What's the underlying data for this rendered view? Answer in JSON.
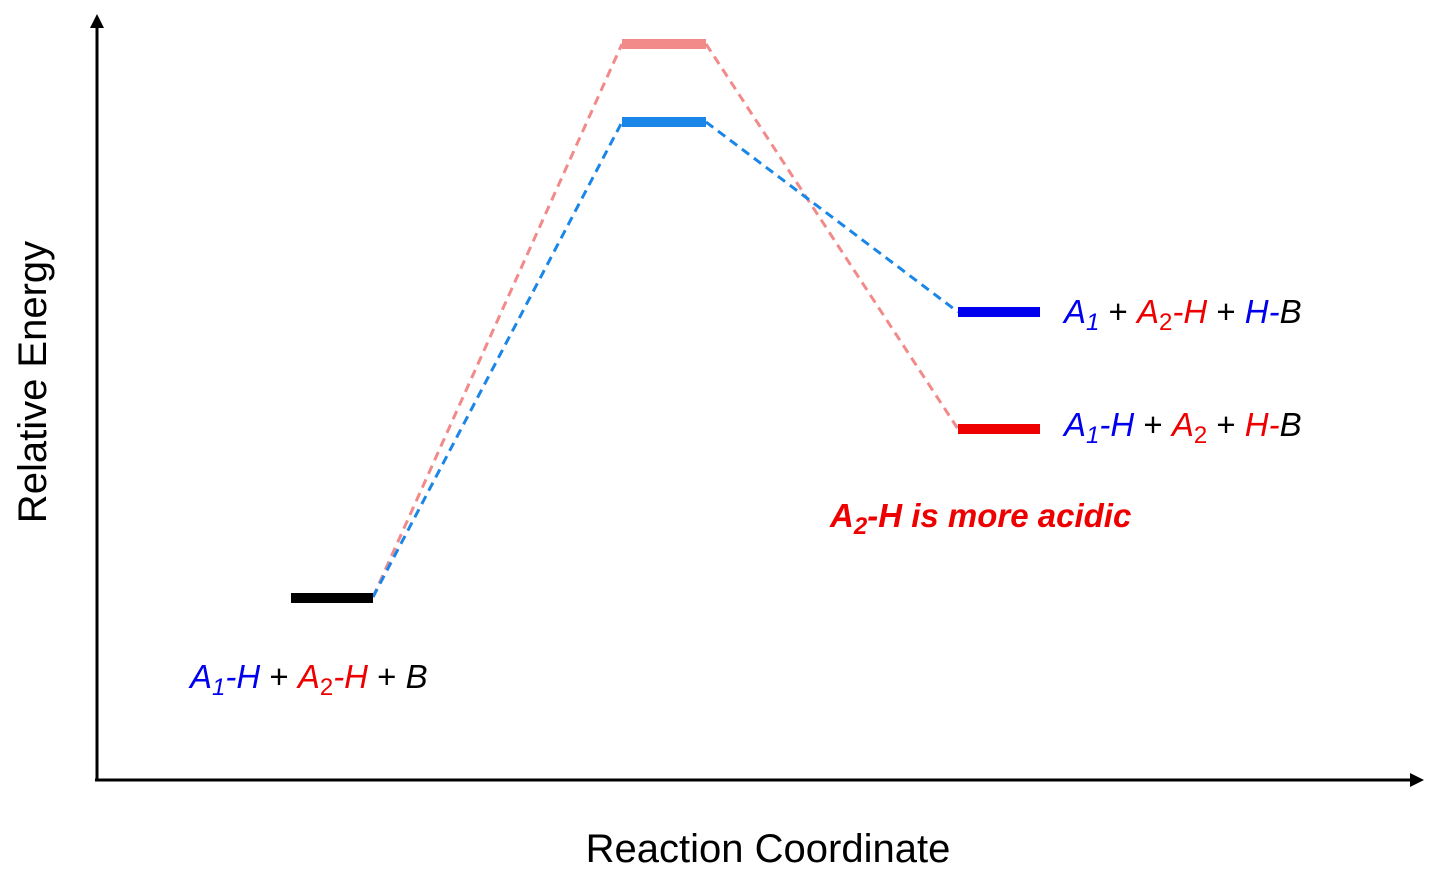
{
  "axes": {
    "y_label": "Relative Energy",
    "x_label": "Reaction Coordinate"
  },
  "colors": {
    "black": "#000000",
    "blue": "#0000ee",
    "red": "#ee0000",
    "blue_path": "#1a86e8",
    "red_path": "#f28a8a",
    "blue_product_level": "#0000ee",
    "red_product_level": "#ee0000",
    "blue_ts_level": "#1a86e8",
    "red_ts_level": "#f28a8a",
    "start_level": "#000000"
  },
  "labels": {
    "reactants": {
      "a1": "A",
      "a1_sub": "1",
      "a1_tail": "-H",
      "plus1": " + ",
      "a2": "A",
      "a2_sub": "2",
      "a2_tail": "-H",
      "plus2": " + ",
      "b": "B"
    },
    "product_upper": {
      "a1": "A",
      "a1_sub": "1",
      "plus1": " + ",
      "a2": "A",
      "a2_sub": "2",
      "a2_tail": "-H",
      "plus2": " + ",
      "h": "H",
      "dash": "-",
      "b": "B"
    },
    "product_lower": {
      "a1": "A",
      "a1_sub": "1",
      "a1_tail": "-H",
      "plus1": " + ",
      "a2": "A",
      "a2_sub": "2",
      "plus2": " + ",
      "h": "H",
      "dash": "-",
      "b": "B"
    },
    "note": {
      "a": "A",
      "sub": "2",
      "rest": "-H is more acidic"
    }
  }
}
